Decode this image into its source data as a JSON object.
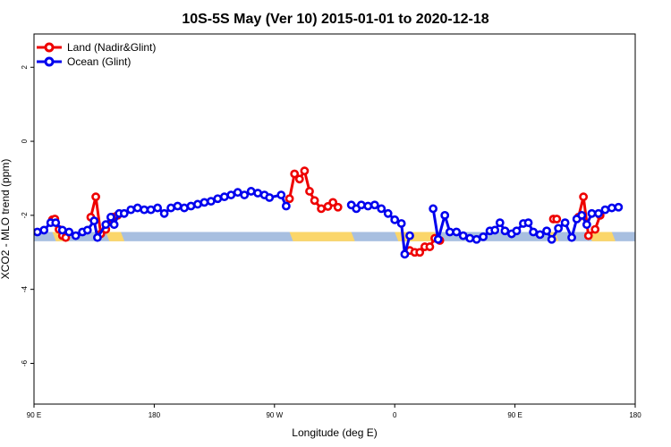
{
  "chart_data": {
    "type": "line",
    "title": "10S-5S May (Ver 10)   2015-01-01 to 2020-12-18",
    "xlabel": "Longitude (deg E)",
    "ylabel": "XCO2 - MLO trend (ppm)",
    "xlim": [
      90,
      450
    ],
    "ylim": [
      -7.1,
      2.9
    ],
    "x_ticks": [
      {
        "value": 90,
        "label": "90 E"
      },
      {
        "value": 162,
        "label": "180"
      },
      {
        "value": 234,
        "label": "90 W"
      },
      {
        "value": 306,
        "label": "0"
      },
      {
        "value": 378,
        "label": "90 E"
      },
      {
        "value": 450,
        "label": "180"
      }
    ],
    "y_ticks": [
      {
        "value": 2,
        "label": "2"
      },
      {
        "value": 0,
        "label": "0"
      },
      {
        "value": -2,
        "label": "-2"
      },
      {
        "value": -4,
        "label": "-4"
      },
      {
        "value": -6,
        "label": "-6"
      }
    ],
    "legend": {
      "placement": "top-left"
    },
    "surface_band": {
      "y_top": -2.45,
      "y_bottom": -2.7,
      "ocean_color": "#a8bfe0",
      "land_color": "#fbd66a",
      "land_segments": [
        [
          101,
          109
        ],
        [
          133,
          142
        ],
        [
          243,
          280
        ],
        [
          306,
          330
        ],
        [
          398,
          402
        ],
        [
          422,
          436
        ]
      ]
    },
    "series": [
      {
        "name": "Land (Nadir&Glint)",
        "color": "#ee0000",
        "points": [
          [
            101,
            -2.12
          ],
          [
            102.5,
            -2.1
          ],
          [
            105,
            -2.38
          ],
          [
            107,
            -2.55
          ],
          [
            109,
            -2.6
          ],
          [
            124,
            -2.05
          ],
          [
            127,
            -1.5
          ],
          [
            130,
            -2.5
          ],
          [
            133,
            -2.38
          ],
          [
            137,
            -2.05
          ],
          [
            140,
            -2.0
          ],
          [
            243,
            -1.55
          ],
          [
            246,
            -0.88
          ],
          [
            249,
            -1.02
          ],
          [
            252,
            -0.8
          ],
          [
            255,
            -1.35
          ],
          [
            258,
            -1.6
          ],
          [
            262,
            -1.82
          ],
          [
            266,
            -1.76
          ],
          [
            269,
            -1.65
          ],
          [
            272,
            -1.78
          ],
          [
            315,
            -2.95
          ],
          [
            318,
            -3.0
          ],
          [
            321,
            -3.0
          ],
          [
            324,
            -2.85
          ],
          [
            327,
            -2.85
          ],
          [
            330,
            -2.62
          ],
          [
            333,
            -2.68
          ],
          [
            401,
            -2.1
          ],
          [
            403,
            -2.1
          ],
          [
            416,
            -2.05
          ],
          [
            419,
            -1.5
          ],
          [
            422,
            -2.55
          ],
          [
            426,
            -2.38
          ],
          [
            429,
            -2.0
          ]
        ]
      },
      {
        "name": "Ocean (Glint)",
        "color": "#0000ee",
        "points": [
          [
            92,
            -2.45
          ],
          [
            96,
            -2.4
          ],
          [
            100,
            -2.2
          ],
          [
            103,
            -2.2
          ],
          [
            107,
            -2.4
          ],
          [
            111,
            -2.45
          ],
          [
            115,
            -2.55
          ],
          [
            119,
            -2.45
          ],
          [
            122,
            -2.4
          ],
          [
            126,
            -2.15
          ],
          [
            128,
            -2.6
          ],
          [
            133,
            -2.25
          ],
          [
            136,
            -2.05
          ],
          [
            138,
            -2.25
          ],
          [
            141,
            -1.95
          ],
          [
            144,
            -1.95
          ],
          [
            148,
            -1.85
          ],
          [
            152,
            -1.8
          ],
          [
            156,
            -1.85
          ],
          [
            160,
            -1.85
          ],
          [
            164,
            -1.8
          ],
          [
            168,
            -1.95
          ],
          [
            172,
            -1.8
          ],
          [
            176,
            -1.75
          ],
          [
            180,
            -1.8
          ],
          [
            184,
            -1.75
          ],
          [
            188,
            -1.7
          ],
          [
            192,
            -1.65
          ],
          [
            196,
            -1.62
          ],
          [
            200,
            -1.55
          ],
          [
            204,
            -1.5
          ],
          [
            208,
            -1.45
          ],
          [
            212,
            -1.38
          ],
          [
            216,
            -1.45
          ],
          [
            220,
            -1.35
          ],
          [
            224,
            -1.4
          ],
          [
            228,
            -1.45
          ],
          [
            231,
            -1.52
          ],
          [
            238,
            -1.45
          ],
          [
            241,
            -1.75
          ],
          [
            280,
            -1.72
          ],
          [
            283,
            -1.82
          ],
          [
            286,
            -1.72
          ],
          [
            290,
            -1.75
          ],
          [
            294,
            -1.72
          ],
          [
            298,
            -1.82
          ],
          [
            302,
            -1.95
          ],
          [
            306,
            -2.12
          ],
          [
            310,
            -2.22
          ],
          [
            312,
            -3.05
          ],
          [
            315,
            -2.55
          ],
          [
            329,
            -1.82
          ],
          [
            332,
            -2.65
          ],
          [
            336,
            -2.0
          ],
          [
            339,
            -2.45
          ],
          [
            343,
            -2.45
          ],
          [
            347,
            -2.55
          ],
          [
            351,
            -2.62
          ],
          [
            355,
            -2.65
          ],
          [
            359,
            -2.58
          ],
          [
            363,
            -2.42
          ],
          [
            366,
            -2.4
          ],
          [
            369,
            -2.2
          ],
          [
            372,
            -2.42
          ],
          [
            376,
            -2.5
          ],
          [
            379,
            -2.42
          ],
          [
            383,
            -2.22
          ],
          [
            386,
            -2.2
          ],
          [
            389,
            -2.45
          ],
          [
            393,
            -2.52
          ],
          [
            397,
            -2.42
          ],
          [
            400,
            -2.65
          ],
          [
            404,
            -2.35
          ],
          [
            408,
            -2.2
          ],
          [
            412,
            -2.6
          ],
          [
            415,
            -2.1
          ],
          [
            418,
            -2.0
          ],
          [
            421,
            -2.25
          ],
          [
            424,
            -1.95
          ],
          [
            428,
            -1.95
          ],
          [
            432,
            -1.85
          ],
          [
            436,
            -1.8
          ],
          [
            440,
            -1.78
          ]
        ]
      }
    ]
  }
}
